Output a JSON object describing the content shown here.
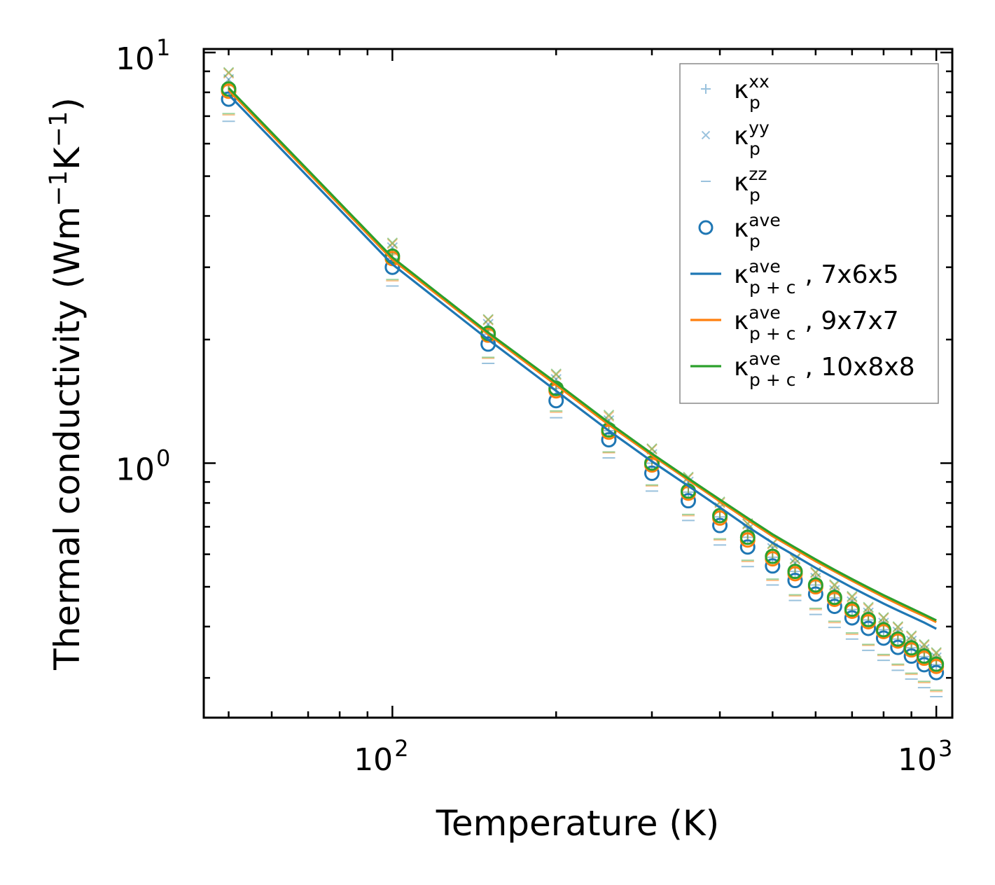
{
  "chart_data": {
    "type": "line",
    "title": "",
    "xlabel": "Temperature (K)",
    "ylabel": "Thermal conductivity (Wm",
    "ylabel_parts": {
      "exp1": "−1",
      "mid": "K",
      "exp2": "−1",
      "end": ")"
    },
    "xscale": "log",
    "yscale": "log",
    "xlim": [
      45,
      1070
    ],
    "ylim": [
      0.24,
      10.2
    ],
    "x_ticks": [
      {
        "value": 100,
        "base": "10",
        "exp": "2"
      },
      {
        "value": 1000,
        "base": "10",
        "exp": "3"
      }
    ],
    "y_ticks": [
      {
        "value": 1,
        "base": "10",
        "exp": "0"
      },
      {
        "value": 10,
        "base": "10",
        "exp": "1"
      }
    ],
    "legend_position": "top-right",
    "x": [
      50,
      100,
      150,
      200,
      250,
      300,
      350,
      400,
      450,
      500,
      550,
      600,
      650,
      700,
      750,
      800,
      850,
      900,
      950,
      1000
    ],
    "scatter_series": [
      {
        "name": "κp xx",
        "label": "κ",
        "sup": "xx",
        "sub": "p",
        "marker": "plus",
        "color": "#1f77b4",
        "curves": [
          [
            8.0,
            3.15,
            2.06,
            1.52,
            1.2,
            1.0,
            0.85,
            0.74,
            0.66,
            0.59,
            0.545,
            0.505,
            0.47,
            0.44,
            0.415,
            0.393,
            0.373,
            0.355,
            0.338,
            0.323
          ],
          [
            8.3,
            3.22,
            2.1,
            1.55,
            1.23,
            1.02,
            0.87,
            0.76,
            0.675,
            0.605,
            0.555,
            0.515,
            0.48,
            0.45,
            0.424,
            0.401,
            0.381,
            0.362,
            0.345,
            0.33
          ],
          [
            8.35,
            3.24,
            2.11,
            1.56,
            1.24,
            1.03,
            0.875,
            0.763,
            0.678,
            0.608,
            0.558,
            0.518,
            0.483,
            0.452,
            0.426,
            0.403,
            0.383,
            0.364,
            0.347,
            0.332
          ]
        ]
      },
      {
        "name": "κp yy",
        "label": "κ",
        "sup": "yy",
        "sub": "p",
        "marker": "x",
        "color": "#1f77b4",
        "curves": [
          [
            8.6,
            3.35,
            2.18,
            1.6,
            1.27,
            1.05,
            0.9,
            0.78,
            0.69,
            0.62,
            0.57,
            0.525,
            0.49,
            0.46,
            0.432,
            0.408,
            0.388,
            0.369,
            0.352,
            0.336
          ],
          [
            8.9,
            3.42,
            2.23,
            1.64,
            1.3,
            1.08,
            0.92,
            0.8,
            0.71,
            0.635,
            0.583,
            0.54,
            0.503,
            0.471,
            0.443,
            0.419,
            0.398,
            0.378,
            0.36,
            0.344
          ],
          [
            8.95,
            3.44,
            2.24,
            1.65,
            1.31,
            1.085,
            0.925,
            0.805,
            0.713,
            0.638,
            0.586,
            0.543,
            0.506,
            0.474,
            0.446,
            0.421,
            0.4,
            0.38,
            0.362,
            0.346
          ]
        ]
      },
      {
        "name": "κp zz",
        "label": "κ",
        "sup": "zz",
        "sub": "p",
        "marker": "hline",
        "color": "#1f77b4",
        "curves": [
          [
            6.8,
            2.7,
            1.75,
            1.29,
            1.03,
            0.855,
            0.725,
            0.632,
            0.56,
            0.505,
            0.463,
            0.428,
            0.398,
            0.373,
            0.35,
            0.331,
            0.313,
            0.298,
            0.284,
            0.27
          ],
          [
            7.05,
            2.78,
            1.8,
            1.33,
            1.06,
            0.88,
            0.745,
            0.65,
            0.576,
            0.518,
            0.475,
            0.44,
            0.409,
            0.383,
            0.36,
            0.34,
            0.322,
            0.306,
            0.292,
            0.278
          ],
          [
            7.1,
            2.8,
            1.81,
            1.34,
            1.065,
            0.885,
            0.75,
            0.654,
            0.58,
            0.522,
            0.478,
            0.443,
            0.412,
            0.386,
            0.362,
            0.342,
            0.324,
            0.308,
            0.294,
            0.28
          ]
        ]
      },
      {
        "name": "κp ave",
        "label": "κ",
        "sup": "ave",
        "sub": "p",
        "marker": "circle",
        "color": "#1f77b4",
        "curves": [
          [
            7.7,
            3.0,
            1.95,
            1.42,
            1.14,
            0.945,
            0.81,
            0.705,
            0.625,
            0.562,
            0.518,
            0.48,
            0.448,
            0.42,
            0.396,
            0.375,
            0.356,
            0.339,
            0.323,
            0.309
          ],
          [
            8.05,
            3.15,
            2.05,
            1.5,
            1.19,
            0.99,
            0.845,
            0.735,
            0.65,
            0.585,
            0.538,
            0.5,
            0.466,
            0.436,
            0.411,
            0.389,
            0.369,
            0.351,
            0.335,
            0.32
          ],
          [
            8.15,
            3.19,
            2.07,
            1.52,
            1.205,
            1.0,
            0.855,
            0.745,
            0.66,
            0.593,
            0.545,
            0.505,
            0.471,
            0.441,
            0.416,
            0.393,
            0.373,
            0.355,
            0.339,
            0.324
          ]
        ]
      }
    ],
    "curve_colors": [
      "#1f77b4",
      "#ff7f0e",
      "#2ca02c"
    ],
    "series": [
      {
        "name": "κp+c ave, 7x6x5",
        "label": "κ",
        "sup": "ave",
        "sub": "p + c",
        "suffix": ", 7x6x5",
        "color": "#1f77b4",
        "values": [
          7.9,
          3.05,
          2.0,
          1.5,
          1.2,
          1.01,
          0.88,
          0.78,
          0.7,
          0.64,
          0.595,
          0.556,
          0.525,
          0.498,
          0.475,
          0.455,
          0.438,
          0.423,
          0.409,
          0.395
        ]
      },
      {
        "name": "κp+c ave, 9x7x7",
        "label": "κ",
        "sup": "ave",
        "sub": "p + c",
        "suffix": ", 9x7x7",
        "color": "#ff7f0e",
        "values": [
          8.1,
          3.13,
          2.06,
          1.55,
          1.24,
          1.045,
          0.91,
          0.807,
          0.727,
          0.664,
          0.617,
          0.577,
          0.545,
          0.517,
          0.493,
          0.472,
          0.454,
          0.438,
          0.424,
          0.41
        ]
      },
      {
        "name": "κp+c ave, 10x8x8",
        "label": "κ",
        "sup": "ave",
        "sub": "p + c",
        "suffix": ", 10x8x8",
        "color": "#2ca02c",
        "values": [
          8.2,
          3.17,
          2.08,
          1.57,
          1.255,
          1.055,
          0.918,
          0.815,
          0.735,
          0.671,
          0.623,
          0.583,
          0.55,
          0.522,
          0.498,
          0.477,
          0.459,
          0.443,
          0.428,
          0.414
        ]
      }
    ]
  }
}
